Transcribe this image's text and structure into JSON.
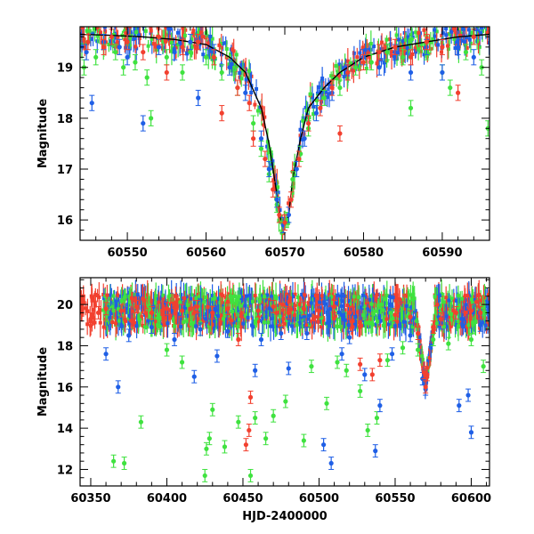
{
  "colors": {
    "green": "#3fe23f",
    "blue": "#1f5fe6",
    "red": "#f2402f",
    "model": "#000000"
  },
  "chart_data": [
    {
      "type": "scatter",
      "xlabel": "",
      "ylabel": "Magnitude",
      "xlim": [
        60544,
        60596
      ],
      "ylim": [
        19.8,
        15.6
      ],
      "y_inverted": true,
      "x_ticks": [
        60550,
        60560,
        60570,
        60580,
        60590
      ],
      "y_ticks": [
        16,
        17,
        18,
        19
      ],
      "model": {
        "x": [
          60544,
          60548,
          60552,
          60556,
          60560,
          60563,
          60565,
          60567,
          60568,
          60569,
          60569.5,
          60570,
          60570.5,
          60571,
          60572,
          60573,
          60575,
          60577,
          60580,
          60584,
          60588,
          60592,
          60596
        ],
        "y": [
          19.65,
          19.63,
          19.6,
          19.55,
          19.45,
          19.2,
          18.9,
          18.2,
          17.5,
          16.5,
          16.0,
          15.9,
          16.1,
          16.8,
          17.6,
          18.2,
          18.6,
          18.9,
          19.2,
          19.4,
          19.5,
          19.6,
          19.65
        ]
      },
      "series": [
        {
          "color": "green",
          "points": [
            [
              60544.5,
              19.0
            ],
            [
              60546,
              19.2
            ],
            [
              60548.5,
              19.3
            ],
            [
              60549.5,
              19.0
            ],
            [
              60551,
              19.1
            ],
            [
              60552.5,
              18.8
            ],
            [
              60553,
              18.0
            ],
            [
              60555,
              19.2
            ],
            [
              60557,
              18.9
            ],
            [
              60558,
              19.3
            ],
            [
              60560,
              19.2
            ],
            [
              60562,
              18.9
            ],
            [
              60564,
              18.6
            ],
            [
              60566,
              17.9
            ],
            [
              60567,
              17.4
            ],
            [
              60568,
              16.9
            ],
            [
              60569,
              16.3
            ],
            [
              60569.6,
              15.95
            ],
            [
              60570.2,
              16.0
            ],
            [
              60571,
              16.8
            ],
            [
              60572,
              17.3
            ],
            [
              60573,
              17.8
            ],
            [
              60575,
              18.4
            ],
            [
              60577,
              18.6
            ],
            [
              60579,
              19.0
            ],
            [
              60581,
              19.1
            ],
            [
              60583,
              19.3
            ],
            [
              60585,
              19.2
            ],
            [
              60586,
              18.2
            ],
            [
              60588,
              19.3
            ],
            [
              60590,
              18.9
            ],
            [
              60591,
              18.6
            ],
            [
              60593,
              19.3
            ],
            [
              60595,
              19.0
            ],
            [
              60595.8,
              17.8
            ]
          ]
        },
        {
          "color": "blue",
          "points": [
            [
              60544.8,
              19.3
            ],
            [
              60545.5,
              18.3
            ],
            [
              60547,
              19.5
            ],
            [
              60549,
              19.4
            ],
            [
              60550,
              19.2
            ],
            [
              60552,
              17.9
            ],
            [
              60554,
              19.4
            ],
            [
              60556,
              19.3
            ],
            [
              60558,
              19.5
            ],
            [
              60559,
              18.4
            ],
            [
              60561,
              19.3
            ],
            [
              60563,
              19.0
            ],
            [
              60565,
              18.5
            ],
            [
              60567,
              17.6
            ],
            [
              60568,
              17.0
            ],
            [
              60569,
              16.4
            ],
            [
              60569.8,
              15.9
            ],
            [
              60570.5,
              16.1
            ],
            [
              60571.5,
              17.0
            ],
            [
              60572.5,
              17.6
            ],
            [
              60574,
              18.1
            ],
            [
              60576,
              18.5
            ],
            [
              60578,
              18.9
            ],
            [
              60580,
              19.2
            ],
            [
              60582,
              19.0
            ],
            [
              60584,
              19.3
            ],
            [
              60586,
              18.9
            ],
            [
              60588,
              19.4
            ],
            [
              60590,
              18.9
            ],
            [
              60592,
              19.4
            ],
            [
              60594,
              19.2
            ]
          ]
        },
        {
          "color": "red",
          "points": [
            [
              60545,
              19.5
            ],
            [
              60547,
              19.4
            ],
            [
              60548,
              19.6
            ],
            [
              60550,
              19.5
            ],
            [
              60552,
              19.3
            ],
            [
              60554,
              19.6
            ],
            [
              60555,
              18.9
            ],
            [
              60557,
              19.4
            ],
            [
              60559,
              19.5
            ],
            [
              60561,
              19.2
            ],
            [
              60562,
              18.1
            ],
            [
              60564,
              18.6
            ],
            [
              60565.5,
              18.3
            ],
            [
              60566,
              17.6
            ],
            [
              60567.5,
              17.2
            ],
            [
              60568.5,
              16.6
            ],
            [
              60569.3,
              16.1
            ],
            [
              60570,
              15.95
            ],
            [
              60570.8,
              16.4
            ],
            [
              60571.8,
              17.2
            ],
            [
              60573,
              17.9
            ],
            [
              60574.5,
              18.2
            ],
            [
              60576,
              18.6
            ],
            [
              60577,
              17.7
            ],
            [
              60578,
              18.9
            ],
            [
              60580,
              19.1
            ],
            [
              60582,
              19.3
            ],
            [
              60584,
              19.4
            ],
            [
              60586,
              19.2
            ],
            [
              60588,
              19.5
            ],
            [
              60590,
              19.4
            ],
            [
              60592,
              18.5
            ],
            [
              60594,
              19.6
            ]
          ]
        }
      ]
    },
    {
      "type": "scatter",
      "xlabel": "HJD-2400000",
      "ylabel": "Magnitude",
      "xlim": [
        60343,
        60612
      ],
      "ylim": [
        21.3,
        11.2
      ],
      "y_inverted": true,
      "x_ticks": [
        60350,
        60400,
        60450,
        60500,
        60550,
        60600
      ],
      "y_ticks": [
        12,
        14,
        16,
        18,
        20
      ],
      "series": [
        {
          "color": "green",
          "points": [
            [
              60365,
              12.4
            ],
            [
              60372,
              12.3
            ],
            [
              60383,
              14.3
            ],
            [
              60400,
              17.8
            ],
            [
              60410,
              17.2
            ],
            [
              60425,
              11.7
            ],
            [
              60426,
              13.0
            ],
            [
              60428,
              13.5
            ],
            [
              60430,
              14.9
            ],
            [
              60438,
              13.1
            ],
            [
              60447,
              14.3
            ],
            [
              60455,
              11.7
            ],
            [
              60458,
              14.5
            ],
            [
              60465,
              13.5
            ],
            [
              60470,
              14.6
            ],
            [
              60478,
              15.3
            ],
            [
              60490,
              13.4
            ],
            [
              60495,
              17.0
            ],
            [
              60505,
              15.2
            ],
            [
              60512,
              17.2
            ],
            [
              60518,
              16.8
            ],
            [
              60527,
              15.8
            ],
            [
              60532,
              13.9
            ],
            [
              60538,
              14.5
            ],
            [
              60545,
              17.3
            ],
            [
              60555,
              17.9
            ],
            [
              60565,
              17.8
            ],
            [
              60575,
              18.3
            ],
            [
              60585,
              18.1
            ],
            [
              60600,
              18.3
            ],
            [
              60608,
              17.0
            ]
          ]
        },
        {
          "color": "blue",
          "points": [
            [
              60360,
              17.6
            ],
            [
              60368,
              16.0
            ],
            [
              60375,
              18.5
            ],
            [
              60390,
              18.9
            ],
            [
              60405,
              18.3
            ],
            [
              60418,
              16.5
            ],
            [
              60422,
              18.8
            ],
            [
              60433,
              17.5
            ],
            [
              60440,
              18.7
            ],
            [
              60458,
              16.8
            ],
            [
              60462,
              18.3
            ],
            [
              60475,
              18.6
            ],
            [
              60480,
              16.9
            ],
            [
              60492,
              18.6
            ],
            [
              60503,
              13.2
            ],
            [
              60508,
              12.3
            ],
            [
              60515,
              17.6
            ],
            [
              60520,
              18.4
            ],
            [
              60530,
              16.6
            ],
            [
              60537,
              12.9
            ],
            [
              60540,
              15.1
            ],
            [
              60548,
              17.6
            ],
            [
              60560,
              18.5
            ],
            [
              60568,
              16.4
            ],
            [
              60570,
              15.9
            ],
            [
              60580,
              19.1
            ],
            [
              60592,
              15.1
            ],
            [
              60598,
              15.6
            ],
            [
              60600,
              13.8
            ],
            [
              60606,
              19.0
            ]
          ]
        },
        {
          "color": "red",
          "points": [
            [
              60350,
              19.3
            ],
            [
              60355,
              19.6
            ],
            [
              60360,
              19.8
            ],
            [
              60370,
              19.7
            ],
            [
              60380,
              19.9
            ],
            [
              60390,
              19.6
            ],
            [
              60400,
              19.8
            ],
            [
              60410,
              19.7
            ],
            [
              60420,
              19.9
            ],
            [
              60430,
              19.6
            ],
            [
              60440,
              19.8
            ],
            [
              60447,
              18.3
            ],
            [
              60452,
              13.2
            ],
            [
              60454,
              13.9
            ],
            [
              60455,
              15.5
            ],
            [
              60460,
              19.7
            ],
            [
              60470,
              19.9
            ],
            [
              60480,
              19.6
            ],
            [
              60490,
              19.8
            ],
            [
              60500,
              19.7
            ],
            [
              60510,
              19.9
            ],
            [
              60520,
              19.6
            ],
            [
              60527,
              17.1
            ],
            [
              60535,
              16.6
            ],
            [
              60540,
              17.3
            ],
            [
              60550,
              19.5
            ],
            [
              60560,
              19.4
            ],
            [
              60565,
              18.6
            ],
            [
              60569,
              16.7
            ],
            [
              60570,
              16.0
            ],
            [
              60571,
              16.6
            ],
            [
              60575,
              18.9
            ],
            [
              60580,
              19.3
            ],
            [
              60590,
              19.6
            ],
            [
              60600,
              19.7
            ],
            [
              60606,
              19.6
            ]
          ]
        }
      ],
      "dense_band": {
        "description_free": true,
        "x_range": [
          60343,
          60612
        ],
        "y_center": 19.7,
        "y_spread": 0.9
      }
    }
  ]
}
